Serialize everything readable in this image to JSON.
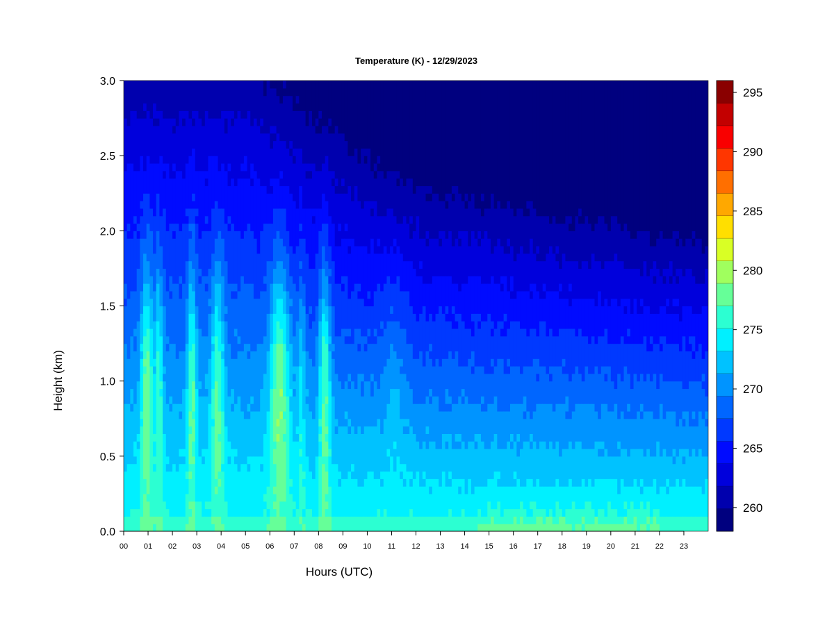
{
  "chart_data": {
    "type": "heatmap",
    "title": "Temperature (K) - 12/29/2023",
    "xlabel": "Hours (UTC)",
    "ylabel": "Height (km)",
    "xlim": [
      0,
      24
    ],
    "ylim": [
      0.0,
      3.0
    ],
    "x_ticks": [
      "00",
      "01",
      "02",
      "03",
      "04",
      "05",
      "06",
      "07",
      "08",
      "09",
      "10",
      "11",
      "12",
      "13",
      "14",
      "15",
      "16",
      "17",
      "18",
      "19",
      "20",
      "21",
      "22",
      "23"
    ],
    "y_ticks": [
      "0.0",
      "0.5",
      "1.0",
      "1.5",
      "2.0",
      "2.5",
      "3.0"
    ],
    "colorbar": {
      "min": 258,
      "max": 296,
      "step": 2.5,
      "labels": [
        "260",
        "265",
        "270",
        "275",
        "280",
        "285",
        "290",
        "295"
      ],
      "colors": [
        "#00007f",
        "#0000ae",
        "#0000dc",
        "#000bff",
        "#0039ff",
        "#0066ff",
        "#0094ff",
        "#00c2ff",
        "#00f0ff",
        "#2cffd2",
        "#66ff98",
        "#a0ff5e",
        "#d9ff25",
        "#ffdf00",
        "#ffa800",
        "#ff6f00",
        "#ff3600",
        "#f90000",
        "#c30000",
        "#8a0000"
      ]
    },
    "warm_plumes_hours_utc": [
      0.95,
      1.45,
      2.8,
      3.85,
      6.4,
      7.3,
      8.25
    ],
    "surface_warm_layer_hours_utc": [
      15,
      21.5
    ],
    "grid": false
  }
}
